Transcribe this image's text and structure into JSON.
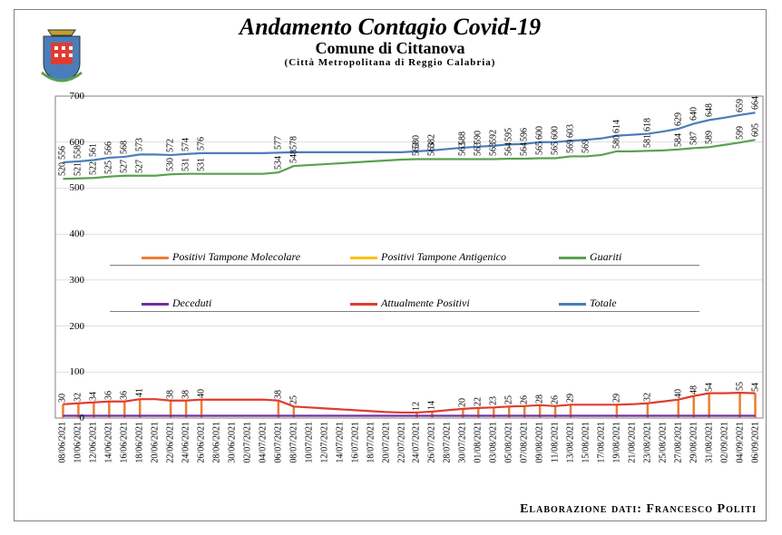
{
  "title": "Andamento Contagio Covid-19",
  "subtitle": "Comune di Cittanova",
  "subsubtitle": "(Città Metropolitana di Reggio Calabria)",
  "footer": "Elaborazione dati: Francesco Politi",
  "chart": {
    "type": "line",
    "background_color": "#ffffff",
    "border_color": "#808080",
    "grid_color": "#c0c0c0",
    "ylim": [
      0,
      700
    ],
    "ytick_step": 100,
    "label_fontsize": 10,
    "dates": [
      "08/06/2021",
      "10/06/2021",
      "12/06/2021",
      "14/06/2021",
      "16/06/2021",
      "18/06/2021",
      "20/06/2021",
      "22/06/2021",
      "24/06/2021",
      "26/06/2021",
      "28/06/2021",
      "30/06/2021",
      "02/07/2021",
      "04/07/2021",
      "06/07/2021",
      "08/07/2021",
      "10/07/2021",
      "12/07/2021",
      "14/07/2021",
      "16/07/2021",
      "18/07/2021",
      "20/07/2021",
      "22/07/2021",
      "24/07/2021",
      "26/07/2021",
      "28/07/2021",
      "30/07/2021",
      "01/08/2021",
      "03/08/2021",
      "05/08/2021",
      "07/08/2021",
      "09/08/2021",
      "11/08/2021",
      "13/08/2021",
      "15/08/2021",
      "17/08/2021",
      "19/08/2021",
      "21/08/2021",
      "23/08/2021",
      "25/08/2021",
      "27/08/2021",
      "29/08/2021",
      "31/08/2021",
      "02/09/2021",
      "04/09/2021",
      "06/09/2021"
    ],
    "series": {
      "totale": {
        "label": "Totale",
        "color": "#4a7ebb",
        "show_bars": false,
        "values": [
          556,
          558,
          561,
          566,
          568,
          573,
          null,
          572,
          574,
          576,
          null,
          null,
          null,
          null,
          577,
          578,
          null,
          null,
          null,
          null,
          null,
          null,
          null,
          580,
          582,
          null,
          588,
          590,
          592,
          595,
          596,
          600,
          600,
          603,
          null,
          null,
          614,
          null,
          618,
          null,
          629,
          640,
          648,
          null,
          659,
          664
        ],
        "trend": [
          556,
          558,
          561,
          566,
          568,
          573,
          573,
          572,
          574,
          576,
          576,
          576,
          576,
          576,
          577,
          578,
          578,
          578,
          578,
          578,
          578,
          578,
          578,
          580,
          582,
          585,
          588,
          590,
          592,
          595,
          596,
          600,
          600,
          603,
          605,
          608,
          614,
          616,
          618,
          623,
          629,
          640,
          648,
          653,
          659,
          664
        ]
      },
      "guariti": {
        "label": "Guariti",
        "color": "#59a14f",
        "show_bars": false,
        "values": [
          520,
          521,
          522,
          525,
          527,
          527,
          null,
          530,
          531,
          531,
          null,
          null,
          null,
          null,
          534,
          548,
          null,
          null,
          null,
          null,
          null,
          null,
          null,
          563,
          563,
          null,
          563,
          563,
          563,
          564,
          564,
          565,
          565,
          569,
          569,
          null,
          580,
          null,
          581,
          null,
          584,
          587,
          589,
          null,
          599,
          605
        ],
        "trend": [
          520,
          521,
          522,
          525,
          527,
          527,
          527,
          530,
          531,
          531,
          531,
          531,
          531,
          531,
          534,
          548,
          550,
          552,
          554,
          556,
          558,
          560,
          562,
          563,
          563,
          563,
          563,
          563,
          563,
          564,
          564,
          565,
          565,
          569,
          569,
          572,
          580,
          580,
          581,
          582,
          584,
          587,
          589,
          594,
          599,
          605
        ]
      },
      "attualmente_positivi": {
        "label": "Attualmente Positivi",
        "color": "#e03c31",
        "show_bars": false,
        "values": [
          30,
          32,
          34,
          36,
          36,
          41,
          null,
          38,
          38,
          40,
          null,
          null,
          null,
          null,
          38,
          25,
          null,
          null,
          null,
          null,
          null,
          null,
          null,
          12,
          14,
          null,
          20,
          22,
          23,
          25,
          26,
          28,
          26,
          29,
          null,
          null,
          29,
          null,
          32,
          null,
          40,
          48,
          54,
          null,
          55,
          54
        ],
        "trend": [
          30,
          32,
          34,
          36,
          36,
          41,
          41,
          38,
          38,
          40,
          40,
          40,
          40,
          40,
          38,
          25,
          23,
          21,
          19,
          17,
          15,
          13,
          12,
          12,
          14,
          17,
          20,
          22,
          23,
          25,
          26,
          28,
          26,
          29,
          29,
          29,
          29,
          30,
          32,
          36,
          40,
          48,
          54,
          54,
          55,
          54
        ]
      },
      "deceduti": {
        "label": "Deceduti",
        "color": "#7030a0",
        "show_bars": false,
        "values": [
          5,
          5,
          5,
          5,
          5,
          5,
          5,
          5,
          5,
          5,
          5,
          5,
          5,
          5,
          5,
          5,
          5,
          5,
          5,
          5,
          5,
          5,
          5,
          5,
          5,
          5,
          5,
          5,
          5,
          5,
          5,
          5,
          5,
          5,
          5,
          5,
          5,
          5,
          5,
          5,
          5,
          5,
          5,
          5,
          5,
          5
        ],
        "trend": [
          5,
          5,
          5,
          5,
          5,
          5,
          5,
          5,
          5,
          5,
          5,
          5,
          5,
          5,
          5,
          5,
          5,
          5,
          5,
          5,
          5,
          5,
          5,
          5,
          5,
          5,
          5,
          5,
          5,
          5,
          5,
          5,
          5,
          5,
          5,
          5,
          5,
          5,
          5,
          5,
          5,
          5,
          5,
          5,
          5,
          5
        ]
      },
      "positivi_molecolare": {
        "label": "Positivi Tampone Molecolare",
        "color": "#ed7d31",
        "show_bars": true,
        "values": [
          30,
          32,
          34,
          36,
          36,
          41,
          null,
          38,
          38,
          40,
          null,
          null,
          null,
          null,
          38,
          25,
          null,
          null,
          null,
          null,
          null,
          null,
          null,
          12,
          14,
          null,
          20,
          22,
          23,
          25,
          26,
          28,
          26,
          29,
          null,
          null,
          29,
          null,
          32,
          null,
          40,
          48,
          54,
          null,
          55,
          54
        ]
      },
      "positivi_antigenico": {
        "label": "Positivi Tampone Antigenico",
        "color": "#ffc000",
        "show_bars": true,
        "values": [
          0,
          0,
          0,
          0,
          0,
          0,
          0,
          0,
          0,
          0,
          0,
          0,
          0,
          0,
          0,
          0,
          0,
          0,
          0,
          0,
          0,
          0,
          0,
          0,
          0,
          0,
          0,
          0,
          0,
          0,
          0,
          0,
          0,
          0,
          0,
          0,
          0,
          0,
          0,
          0,
          0,
          0,
          0,
          0,
          0,
          0
        ]
      }
    },
    "legend": {
      "row1_y": 336,
      "row2_y": 370,
      "items": [
        {
          "key": "positivi_molecolare",
          "x": 140,
          "row": 1
        },
        {
          "key": "positivi_antigenico",
          "x": 370,
          "row": 1
        },
        {
          "key": "guariti",
          "x": 600,
          "row": 1
        },
        {
          "key": "deceduti",
          "x": 140,
          "row": 2
        },
        {
          "key": "attualmente_positivi",
          "x": 370,
          "row": 2
        },
        {
          "key": "totale",
          "x": 600,
          "row": 2
        }
      ]
    }
  }
}
